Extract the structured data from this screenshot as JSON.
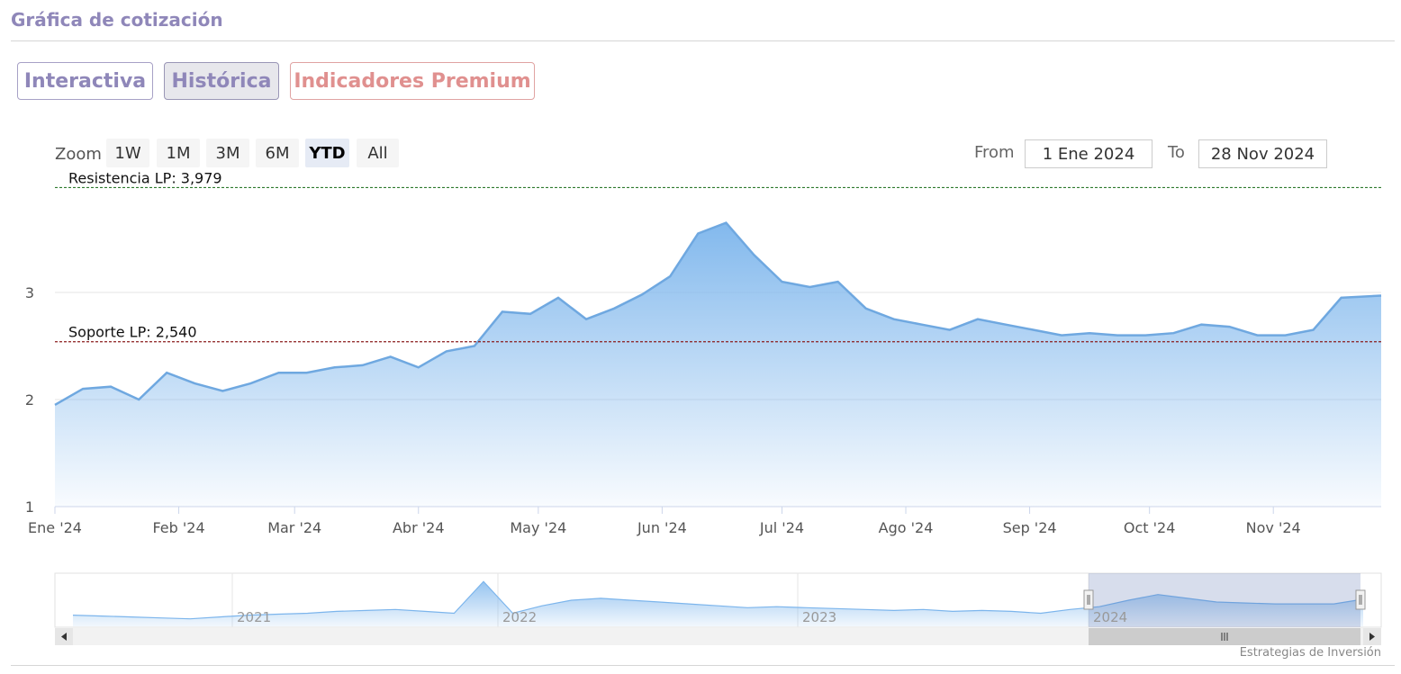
{
  "header": {
    "title": "Gráfica de cotización"
  },
  "tabs": [
    {
      "label": "Interactiva",
      "active": false
    },
    {
      "label": "Histórica",
      "active": true
    },
    {
      "label": "Indicadores Premium",
      "active": false
    }
  ],
  "range_selector": {
    "zoom_label": "Zoom",
    "buttons": [
      "1W",
      "1M",
      "3M",
      "6M",
      "YTD",
      "All"
    ],
    "selected": "YTD",
    "from_label": "From",
    "from_value": "1 Ene 2024",
    "to_label": "To",
    "to_value": "28 Nov 2024"
  },
  "chart_data": {
    "type": "area",
    "ylim": [
      1,
      4.05
    ],
    "y_ticks": [
      1,
      2,
      3
    ],
    "x_tick_labels": [
      "Ene '24",
      "Feb '24",
      "Mar '24",
      "Abr '24",
      "May '24",
      "Jun '24",
      "Jul '24",
      "Ago '24",
      "Sep '24",
      "Oct '24",
      "Nov '24"
    ],
    "x": [
      "2024-01-01",
      "2024-01-08",
      "2024-01-15",
      "2024-01-22",
      "2024-01-29",
      "2024-02-05",
      "2024-02-12",
      "2024-02-19",
      "2024-02-26",
      "2024-03-04",
      "2024-03-11",
      "2024-03-18",
      "2024-03-25",
      "2024-04-01",
      "2024-04-08",
      "2024-04-15",
      "2024-04-22",
      "2024-04-29",
      "2024-05-06",
      "2024-05-13",
      "2024-05-20",
      "2024-05-27",
      "2024-06-03",
      "2024-06-10",
      "2024-06-17",
      "2024-06-24",
      "2024-07-01",
      "2024-07-08",
      "2024-07-15",
      "2024-07-22",
      "2024-07-29",
      "2024-08-05",
      "2024-08-12",
      "2024-08-19",
      "2024-08-26",
      "2024-09-02",
      "2024-09-09",
      "2024-09-16",
      "2024-09-23",
      "2024-09-30",
      "2024-10-07",
      "2024-10-14",
      "2024-10-21",
      "2024-10-28",
      "2024-11-04",
      "2024-11-11",
      "2024-11-18",
      "2024-11-28"
    ],
    "values": [
      1.95,
      2.1,
      2.12,
      2.0,
      2.25,
      2.15,
      2.08,
      2.15,
      2.25,
      2.25,
      2.3,
      2.32,
      2.4,
      2.3,
      2.45,
      2.5,
      2.82,
      2.8,
      2.95,
      2.75,
      2.85,
      2.98,
      3.15,
      3.55,
      3.65,
      3.35,
      3.1,
      3.05,
      3.1,
      2.85,
      2.75,
      2.7,
      2.65,
      2.75,
      2.7,
      2.65,
      2.6,
      2.62,
      2.6,
      2.6,
      2.62,
      2.7,
      2.68,
      2.6,
      2.6,
      2.65,
      2.95,
      2.97
    ],
    "plot_lines": [
      {
        "label": "Resistencia LP: 3,979",
        "value": 3.979,
        "color": "#2d7a2d"
      },
      {
        "label": "Soporte LP: 2,540",
        "value": 2.54,
        "color": "#8b1c1c"
      }
    ],
    "navigator": {
      "year_labels": [
        "2021",
        "2022",
        "2023",
        "2024"
      ],
      "values": [
        2.1,
        2.05,
        2.0,
        1.95,
        1.9,
        2.0,
        2.1,
        2.15,
        2.2,
        2.3,
        2.35,
        2.4,
        2.3,
        2.2,
        3.9,
        2.2,
        2.6,
        2.9,
        3.0,
        2.9,
        2.8,
        2.7,
        2.6,
        2.5,
        2.55,
        2.5,
        2.45,
        2.4,
        2.35,
        2.4,
        2.3,
        2.35,
        2.3,
        2.2,
        2.4,
        2.55,
        2.9,
        3.2,
        3.0,
        2.8,
        2.75,
        2.7,
        2.7,
        2.7,
        2.95
      ],
      "ylim": [
        1.5,
        4.2
      ]
    }
  },
  "credits": "Estrategias de Inversión"
}
